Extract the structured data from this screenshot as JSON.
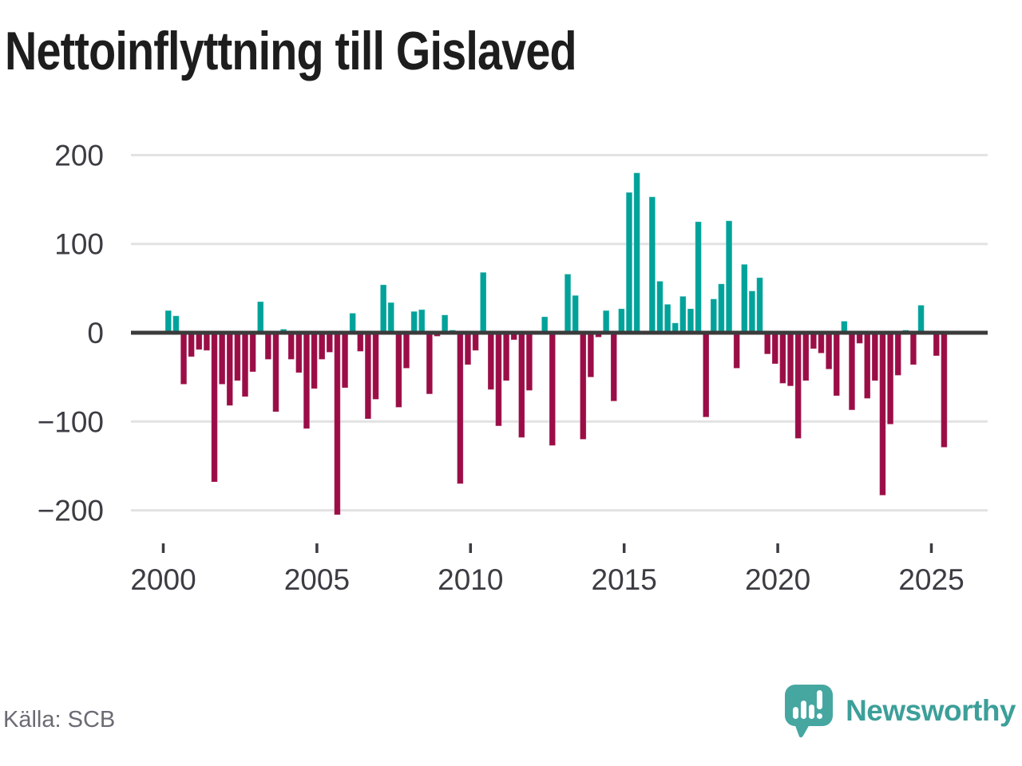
{
  "title": "Nettoinflyttning till Gislaved",
  "source": "Källa: SCB",
  "branding": {
    "name": "Newsworthy",
    "icon": "speech-bubble-chart-icon"
  },
  "colors": {
    "positive": "#00a29a",
    "negative": "#9b0d46",
    "grid": "#e2e2e2",
    "zero_line": "#3b3b3b",
    "axis_text": "#3c3c43",
    "title_text": "#1d1d1d",
    "source_text": "#6b6b74",
    "brand_teal": "#3d9f99",
    "brand_bubble": "#46a7a1"
  },
  "chart_data": {
    "type": "bar",
    "title": "Nettoinflyttning till Gislaved",
    "frequency": "quarterly",
    "x_start": "2000-Q1",
    "x_end": "2025-Q2",
    "n_points": 102,
    "x_tick_labels": [
      "2000",
      "2005",
      "2010",
      "2015",
      "2020",
      "2025"
    ],
    "y_ticks": [
      200,
      100,
      0,
      -100,
      -200
    ],
    "ylim": [
      -215,
      215
    ],
    "grid": true,
    "legend": "none",
    "values": [
      25,
      19,
      -58,
      -27,
      -19,
      -20,
      -168,
      -58,
      -82,
      -54,
      -72,
      -44,
      35,
      -30,
      -89,
      4,
      -30,
      -45,
      -108,
      -63,
      -30,
      -22,
      -205,
      -62,
      22,
      -21,
      -97,
      -75,
      54,
      34,
      -84,
      -40,
      24,
      26,
      -69,
      -4,
      20,
      3,
      -170,
      -36,
      -20,
      68,
      -64,
      -105,
      -54,
      -8,
      -118,
      -65,
      0,
      18,
      -127,
      0,
      66,
      42,
      -120,
      -50,
      -5,
      25,
      -77,
      27,
      158,
      180,
      0,
      153,
      58,
      32,
      11,
      41,
      27,
      125,
      -95,
      38,
      55,
      126,
      -40,
      77,
      47,
      62,
      -24,
      -35,
      -57,
      -60,
      -119,
      -54,
      -18,
      -23,
      -41,
      -71,
      13,
      -87,
      -12,
      -74,
      -54,
      -183,
      -103,
      -48,
      3,
      -36,
      31,
      0,
      -26,
      -129
    ]
  }
}
